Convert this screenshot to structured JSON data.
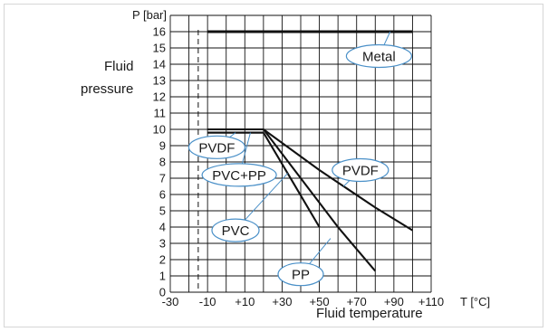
{
  "chart_data": {
    "type": "line",
    "y_axis_unit_label": "P [bar]",
    "x_axis_unit_label": "T [°C]",
    "y_axis_title_lines": [
      "Fluid",
      "pressure"
    ],
    "x_axis_title": "Fluid temperature",
    "x_ticks": [
      "-30",
      "-10",
      "+10",
      "+30",
      "+50",
      "+70",
      "+90",
      "+110"
    ],
    "y_ticks": [
      "0",
      "1",
      "2",
      "3",
      "4",
      "5",
      "6",
      "7",
      "8",
      "9",
      "10",
      "11",
      "12",
      "13",
      "14",
      "15",
      "16"
    ],
    "xlim": [
      -30,
      110
    ],
    "ylim": [
      0,
      17
    ],
    "grid": true,
    "reference_line_x": -15,
    "series": [
      {
        "name": "Metal",
        "points": [
          [
            -10,
            16
          ],
          [
            100,
            16
          ]
        ]
      },
      {
        "name": "PVDF",
        "points": [
          [
            -10,
            10
          ],
          [
            20,
            10
          ],
          [
            50,
            7.5
          ],
          [
            80,
            5.2
          ],
          [
            100,
            3.8
          ]
        ]
      },
      {
        "name": "PVC+PP",
        "points": [
          [
            -10,
            9.8
          ],
          [
            20,
            9.8
          ]
        ]
      },
      {
        "name": "PVC",
        "points": [
          [
            20,
            9.8
          ],
          [
            34,
            7.1
          ],
          [
            50,
            4
          ]
        ]
      },
      {
        "name": "PP",
        "points": [
          [
            20,
            10
          ],
          [
            60,
            4
          ],
          [
            80,
            1.3
          ]
        ]
      }
    ],
    "callouts": [
      {
        "label": "Metal",
        "anchor": [
          88,
          16
        ],
        "at": [
          82,
          14.5
        ]
      },
      {
        "label": "PVDF",
        "anchor": [
          5,
          9.8
        ],
        "at": [
          -5,
          8.9
        ]
      },
      {
        "label": "PVC+PP",
        "anchor": [
          13,
          9.8
        ],
        "at": [
          7,
          7.2
        ]
      },
      {
        "label": "PVDF",
        "anchor": [
          63,
          6.5
        ],
        "at": [
          72,
          7.5
        ]
      },
      {
        "label": "PVC",
        "anchor": [
          33,
          7.3
        ],
        "at": [
          5,
          3.8
        ]
      },
      {
        "label": "PP",
        "anchor": [
          56,
          3.3
        ],
        "at": [
          40,
          1.1
        ]
      }
    ]
  }
}
